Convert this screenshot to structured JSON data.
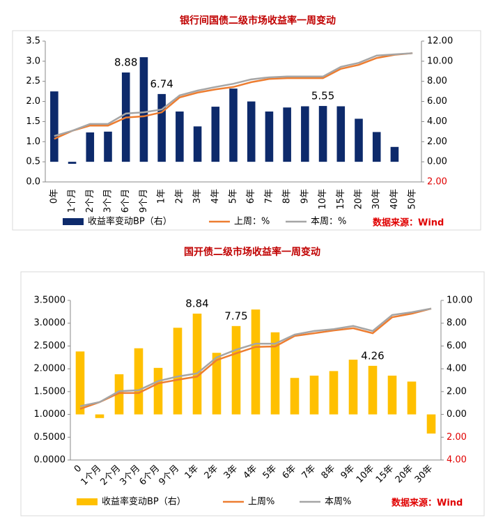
{
  "chart_data": [
    {
      "type": "bar_line",
      "title": "银行间国债二级市场收益率一周变动",
      "categories": [
        "0年",
        "1个月",
        "2个月",
        "3个月",
        "6个月",
        "9个月",
        "1年",
        "2年",
        "3年",
        "4年",
        "5年",
        "6年",
        "7年",
        "8年",
        "9年",
        "10年",
        "15年",
        "20年",
        "30年",
        "40年",
        "50年"
      ],
      "series": [
        {
          "name": "收益率变动BP（右）",
          "color": "#0d2a6b",
          "axis": "y2",
          "kind": "bar",
          "values": [
            7.0,
            -0.2,
            2.92,
            3.0,
            8.88,
            10.4,
            6.74,
            5.0,
            3.52,
            5.48,
            7.28,
            6.0,
            5.0,
            5.4,
            5.52,
            5.55,
            5.52,
            4.28,
            2.96,
            1.48,
            null
          ],
          "value_labels": [
            null,
            null,
            null,
            null,
            "8.88",
            null,
            "6.74",
            null,
            null,
            null,
            null,
            null,
            null,
            null,
            null,
            "5.55",
            null,
            null,
            null,
            null,
            null
          ]
        },
        {
          "name": "上周：%",
          "color": "#ed7d31",
          "kind": "line",
          "values": [
            1.07,
            1.27,
            1.4,
            1.4,
            1.6,
            1.63,
            1.73,
            2.1,
            2.22,
            2.3,
            2.36,
            2.48,
            2.56,
            2.58,
            2.58,
            2.58,
            2.81,
            2.91,
            3.08,
            3.16,
            3.2
          ]
        },
        {
          "name": "本周：%",
          "color": "#a5a5a5",
          "kind": "line",
          "values": [
            1.14,
            1.27,
            1.44,
            1.44,
            1.7,
            1.73,
            1.8,
            2.15,
            2.27,
            2.36,
            2.44,
            2.55,
            2.6,
            2.62,
            2.62,
            2.62,
            2.86,
            2.96,
            3.14,
            3.17,
            3.2
          ]
        }
      ],
      "ylim": [
        0,
        3.5
      ],
      "yticks": [
        {
          "value": 0,
          "label": "0.0"
        },
        {
          "value": 0.5,
          "label": "0.5"
        },
        {
          "value": 1,
          "label": "1.0"
        },
        {
          "value": 1.5,
          "label": "1.5"
        },
        {
          "value": 2,
          "label": "2.0"
        },
        {
          "value": 2.5,
          "label": "2.5"
        },
        {
          "value": 3,
          "label": "3.0"
        },
        {
          "value": 3.5,
          "label": "3.5"
        }
      ],
      "y2lim": [
        -2,
        12
      ],
      "y2ticks": [
        {
          "value": -2,
          "label": "2.00"
        },
        {
          "value": 0,
          "label": "0.00"
        },
        {
          "value": 2,
          "label": "2.00"
        },
        {
          "value": 4,
          "label": "4.00"
        },
        {
          "value": 6,
          "label": "6.00"
        },
        {
          "value": 8,
          "label": "8.00"
        },
        {
          "value": 10,
          "label": "10.00"
        },
        {
          "value": 12,
          "label": "12.00"
        }
      ],
      "negative_tick_color": "#e00000",
      "source": "数据来源：Wind"
    },
    {
      "type": "bar_line",
      "title": "国开债二级市场收益率一周变动",
      "categories": [
        "0",
        "1个月",
        "2个月",
        "3个月",
        "6个月",
        "9个月",
        "1年",
        "2年",
        "3年",
        "4年",
        "5年",
        "6年",
        "7年",
        "8年",
        "9年",
        "10年",
        "15年",
        "20年",
        "30年"
      ],
      "series": [
        {
          "name": "收益率变动BP（右）",
          "color": "#ffc000",
          "axis": "y2",
          "kind": "bar",
          "values": [
            5.52,
            -0.32,
            3.52,
            5.8,
            4.08,
            7.6,
            8.84,
            5.4,
            7.75,
            9.2,
            7.2,
            3.2,
            3.4,
            3.8,
            4.8,
            4.26,
            3.4,
            2.88,
            -1.68
          ],
          "value_labels": [
            null,
            null,
            null,
            null,
            null,
            null,
            "8.84",
            null,
            "7.75",
            null,
            null,
            null,
            null,
            null,
            null,
            "4.26",
            null,
            null,
            null
          ]
        },
        {
          "name": "上周%",
          "color": "#ed7d31",
          "kind": "line",
          "values": [
            1.12,
            1.27,
            1.47,
            1.47,
            1.68,
            1.76,
            1.83,
            2.19,
            2.34,
            2.48,
            2.49,
            2.72,
            2.78,
            2.84,
            2.89,
            2.78,
            3.13,
            3.21,
            3.32
          ]
        },
        {
          "name": "本周%",
          "color": "#a5a5a5",
          "kind": "line",
          "values": [
            1.18,
            1.27,
            1.51,
            1.53,
            1.73,
            1.83,
            1.9,
            2.25,
            2.42,
            2.55,
            2.55,
            2.75,
            2.83,
            2.87,
            2.94,
            2.83,
            3.18,
            3.24,
            3.32
          ]
        }
      ],
      "ylim": [
        0,
        3.5
      ],
      "yticks": [
        {
          "value": 0,
          "label": "0.0000"
        },
        {
          "value": 0.5,
          "label": "0.5000"
        },
        {
          "value": 1,
          "label": "1.0000"
        },
        {
          "value": 1.5,
          "label": "1.5000"
        },
        {
          "value": 2,
          "label": "2.0000"
        },
        {
          "value": 2.5,
          "label": "2.5000"
        },
        {
          "value": 3,
          "label": "3.0000"
        },
        {
          "value": 3.5,
          "label": "3.5000"
        }
      ],
      "y2lim": [
        -4,
        10
      ],
      "y2ticks": [
        {
          "value": -4,
          "label": "4.00"
        },
        {
          "value": -2,
          "label": "2.00"
        },
        {
          "value": 0,
          "label": "0.00"
        },
        {
          "value": 2,
          "label": "2.00"
        },
        {
          "value": 4,
          "label": "4.00"
        },
        {
          "value": 6,
          "label": "6.00"
        },
        {
          "value": 8,
          "label": "8.00"
        },
        {
          "value": 10,
          "label": "10.00"
        }
      ],
      "negative_tick_color": "#e00000",
      "source": "数据来源：Wind"
    }
  ]
}
